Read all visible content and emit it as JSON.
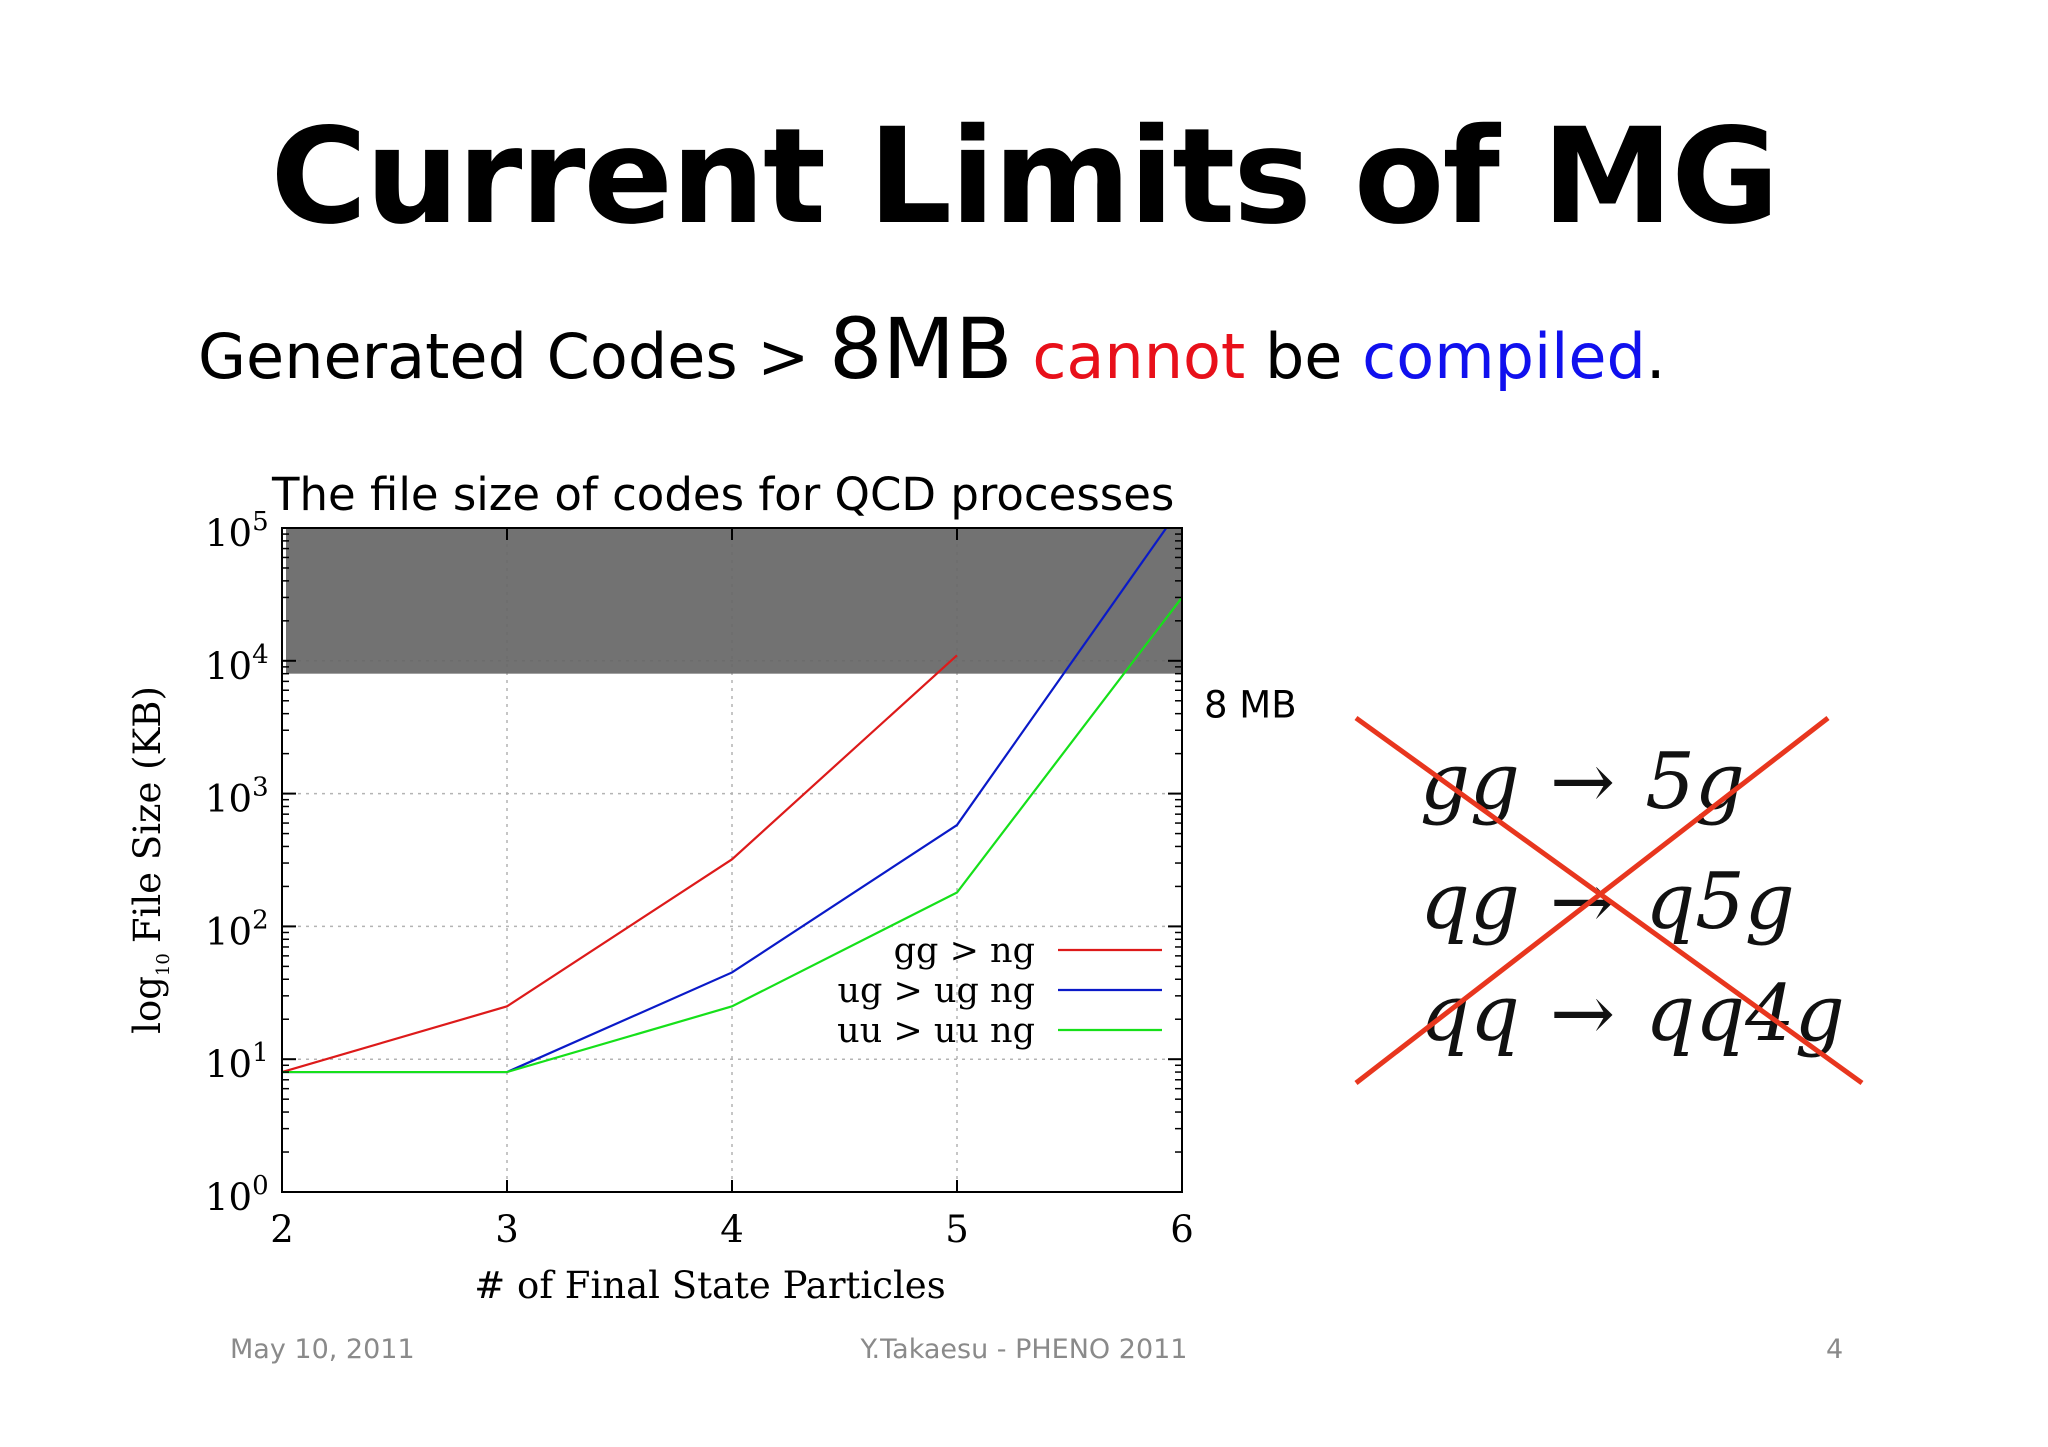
{
  "slide": {
    "title": "Current Limits of MG",
    "subtitle": {
      "part1": "Generated Codes",
      "part2": ">",
      "part3": "8MB",
      "part4": "cannot",
      "part5": "be",
      "part6": "compiled",
      "part7": ".",
      "red": "#e8101a",
      "blue": "#1010ee"
    },
    "footer": {
      "date": "May 10, 2011",
      "center": "Y.Takaesu - PHENO 2011",
      "page": "4"
    }
  },
  "chart_data": {
    "type": "line",
    "title": "The file size of codes for QCD processes",
    "xlabel": "# of Final State Particles",
    "ylabel_prefix": "log",
    "ylabel_sub": "10",
    "ylabel_rest": "File Size (KB)",
    "x_ticks": [
      "2",
      "3",
      "4",
      "5",
      "6"
    ],
    "y_tick_base": "10",
    "y_tick_exponents": [
      "0",
      "1",
      "2",
      "3",
      "4",
      "5"
    ],
    "xlim": [
      2,
      6
    ],
    "ylim": [
      1,
      100000
    ],
    "yscale": "log",
    "grid": true,
    "legend_position": "lower-right",
    "threshold": {
      "label": "8 MB",
      "value_kb": 8000,
      "color": "#666666"
    },
    "series": [
      {
        "name": "gg > ng",
        "color": "#dd1a1a",
        "x": [
          2,
          3,
          4,
          5
        ],
        "y": [
          8,
          25,
          320,
          11000
        ]
      },
      {
        "name": "ug > ug ng",
        "color": "#0a1ac8",
        "x": [
          2,
          3,
          4,
          5,
          5.93
        ],
        "y": [
          8,
          8,
          45,
          580,
          100000
        ]
      },
      {
        "name": "uu > uu ng",
        "color": "#16e01a",
        "x": [
          2,
          3,
          4,
          5,
          6
        ],
        "y": [
          8,
          8,
          25,
          180,
          30000
        ]
      }
    ]
  },
  "side_panel": {
    "formulas": [
      {
        "lhs": "gg",
        "arrow": "→",
        "rhs": "5g"
      },
      {
        "lhs": "qg",
        "arrow": "→",
        "rhs": "q5g"
      },
      {
        "lhs": "qq",
        "arrow": "→",
        "rhs": "qq4g"
      }
    ],
    "cross_color": "#e8361e"
  }
}
